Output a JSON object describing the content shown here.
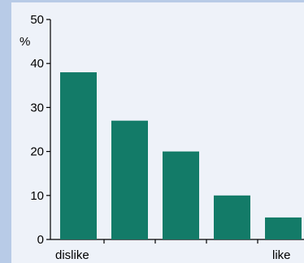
{
  "colors": {
    "background_stripe": "#b8cbe7",
    "panel": "#eef2f9",
    "bar": "#137b68",
    "axis": "#000000"
  },
  "chart_data": {
    "type": "bar",
    "ylabel": "%",
    "xlabel": "",
    "ylim": [
      0,
      50
    ],
    "y_ticks": [
      0,
      10,
      20,
      30,
      40,
      50
    ],
    "categories": [
      "",
      "",
      "",
      "",
      ""
    ],
    "values": [
      38,
      27,
      20,
      10,
      5
    ],
    "x_end_labels": {
      "left": "dislike",
      "right": "like"
    },
    "grid": false
  }
}
